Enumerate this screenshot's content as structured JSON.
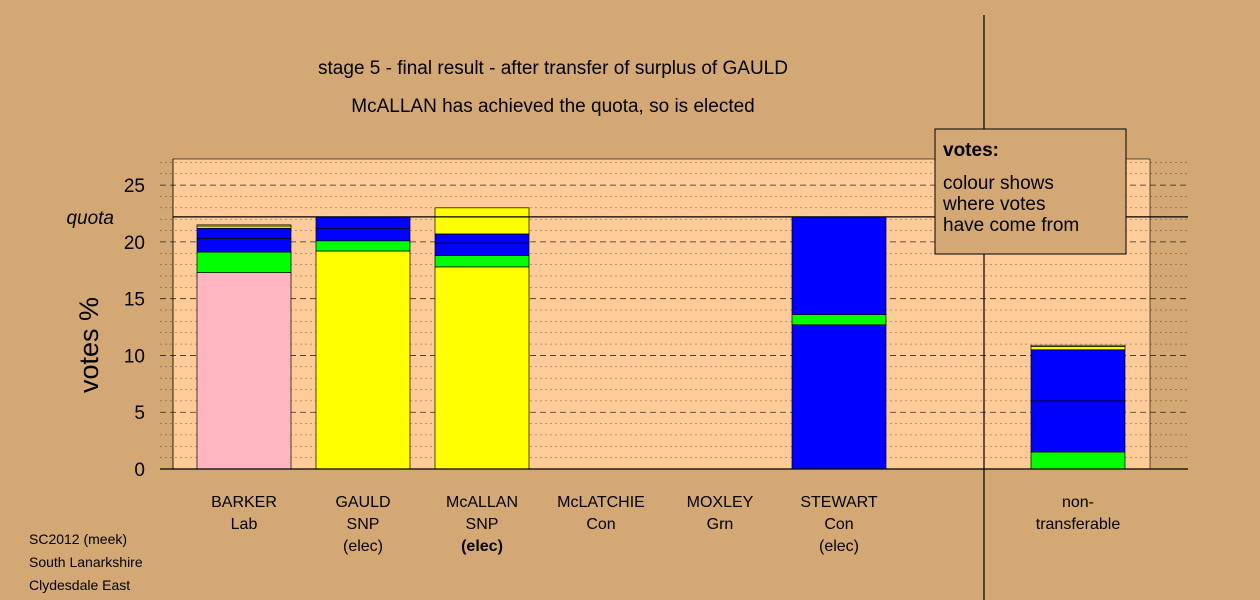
{
  "chart_data": {
    "type": "bar",
    "stacked": true,
    "title": "stage 5 - final result - after transfer of surplus of GAULD",
    "subtitle": "McALLAN has achieved the quota, so is elected",
    "ylabel": "votes %",
    "ylim": [
      0,
      27.3
    ],
    "yticks": [
      "0",
      "5",
      "10",
      "15",
      "20",
      "25"
    ],
    "quota": 22.2,
    "quota_label": "quota",
    "grid": "dashed horizontal",
    "legend": {
      "placement": "top-right",
      "title": "votes:",
      "lines": [
        "colour shows",
        "where votes",
        "have come from"
      ]
    },
    "colors": {
      "background": "#d4a874",
      "plot_area": "#ffcc99",
      "Lab": "#ffb6c1",
      "SNP": "#ffff00",
      "Grn": "#00ff00",
      "Con": "#0000ff",
      "Other": "#ffffff"
    },
    "categories": [
      {
        "name": "BARKER",
        "party": "Lab",
        "status": "",
        "bold_status": false,
        "segments": [
          {
            "from": "Lab",
            "value": 17.3
          },
          {
            "from": "Grn",
            "value": 1.8
          },
          {
            "from": "Con",
            "value": 1.2
          },
          {
            "from": "Con",
            "value": 0.9
          },
          {
            "from": "SNP",
            "value": 0.2
          },
          {
            "from": "Other",
            "value": 0.1
          }
        ]
      },
      {
        "name": "GAULD",
        "party": "SNP",
        "status": "(elec)",
        "bold_status": false,
        "segments": [
          {
            "from": "SNP",
            "value": 19.2
          },
          {
            "from": "Grn",
            "value": 0.9
          },
          {
            "from": "Con",
            "value": 1.1
          },
          {
            "from": "Con",
            "value": 1.0
          }
        ]
      },
      {
        "name": "McALLAN",
        "party": "SNP",
        "status": "(elec)",
        "bold_status": true,
        "segments": [
          {
            "from": "SNP",
            "value": 17.8
          },
          {
            "from": "Grn",
            "value": 1.0
          },
          {
            "from": "Con",
            "value": 1.1
          },
          {
            "from": "Con",
            "value": 0.8
          },
          {
            "from": "SNP",
            "value": 2.3
          }
        ]
      },
      {
        "name": "McLATCHIE",
        "party": "Con",
        "status": "",
        "bold_status": false,
        "segments": []
      },
      {
        "name": "MOXLEY",
        "party": "Grn",
        "status": "",
        "bold_status": false,
        "segments": []
      },
      {
        "name": "STEWART",
        "party": "Con",
        "status": "(elec)",
        "bold_status": false,
        "segments": [
          {
            "from": "Con",
            "value": 12.7
          },
          {
            "from": "Grn",
            "value": 0.9
          },
          {
            "from": "Con",
            "value": 8.6
          }
        ]
      }
    ],
    "nontransferable": {
      "label_line1": "non-",
      "label_line2": "transferable",
      "segments": [
        {
          "from": "Grn",
          "value": 1.5
        },
        {
          "from": "Con",
          "value": 4.5
        },
        {
          "from": "Con",
          "value": 4.5
        },
        {
          "from": "SNP",
          "value": 0.3
        },
        {
          "from": "Other",
          "value": 0.1
        }
      ]
    }
  },
  "footer": {
    "line1": "SC2012 (meek)",
    "line2": "South Lanarkshire",
    "line3": "Clydesdale East"
  }
}
